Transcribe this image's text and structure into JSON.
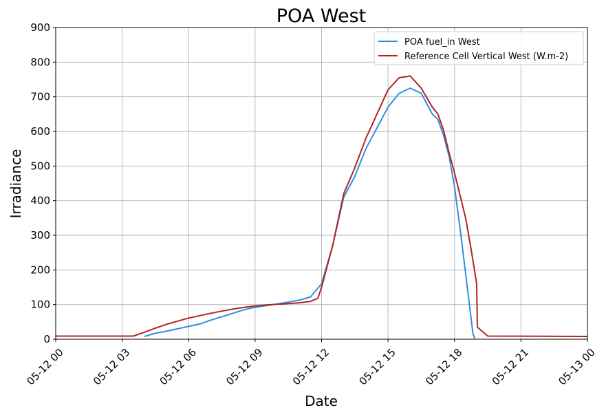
{
  "chart_data": {
    "type": "line",
    "title": "POA West",
    "xlabel": "Date",
    "ylabel": "Irradiance",
    "xlim": [
      "2024-05-12 00:00",
      "2024-05-13 00:00"
    ],
    "ylim": [
      0,
      900
    ],
    "x_ticks": [
      "05-12 00",
      "05-12 03",
      "05-12 06",
      "05-12 09",
      "05-12 12",
      "05-12 15",
      "05-12 18",
      "05-12 21",
      "05-13 00"
    ],
    "y_ticks": [
      0,
      100,
      200,
      300,
      400,
      500,
      600,
      700,
      800,
      900
    ],
    "grid": true,
    "legend_position": "upper right",
    "series": [
      {
        "name": "POA fuel_in West",
        "color": "#2b8fe0",
        "points": [
          [
            "05-12 04:00",
            8
          ],
          [
            "05-12 04:30",
            17
          ],
          [
            "05-12 05:00",
            23
          ],
          [
            "05-12 05:30",
            30
          ],
          [
            "05-12 06:00",
            37
          ],
          [
            "05-12 06:30",
            44
          ],
          [
            "05-12 07:00",
            55
          ],
          [
            "05-12 07:30",
            65
          ],
          [
            "05-12 08:00",
            75
          ],
          [
            "05-12 08:30",
            85
          ],
          [
            "05-12 09:00",
            92
          ],
          [
            "05-12 09:30",
            97
          ],
          [
            "05-12 10:00",
            102
          ],
          [
            "05-12 10:30",
            107
          ],
          [
            "05-12 11:00",
            113
          ],
          [
            "05-12 11:30",
            122
          ],
          [
            "05-12 12:00",
            160
          ],
          [
            "05-12 12:30",
            270
          ],
          [
            "05-12 13:00",
            410
          ],
          [
            "05-12 13:30",
            470
          ],
          [
            "05-12 14:00",
            550
          ],
          [
            "05-12 14:30",
            610
          ],
          [
            "05-12 15:00",
            670
          ],
          [
            "05-12 15:30",
            710
          ],
          [
            "05-12 16:00",
            725
          ],
          [
            "05-12 16:30",
            710
          ],
          [
            "05-12 17:00",
            650
          ],
          [
            "05-12 17:15",
            635
          ],
          [
            "05-12 17:30",
            590
          ],
          [
            "05-12 17:45",
            530
          ],
          [
            "05-12 18:00",
            440
          ],
          [
            "05-12 18:15",
            320
          ],
          [
            "05-12 18:30",
            190
          ],
          [
            "05-12 18:45",
            60
          ],
          [
            "05-12 18:50",
            15
          ],
          [
            "05-12 18:55",
            2
          ]
        ]
      },
      {
        "name": "Reference Cell Vertical West (W.m-2)",
        "color": "#b22222",
        "points": [
          [
            "05-12 00:00",
            9
          ],
          [
            "05-12 03:30",
            9
          ],
          [
            "05-12 04:00",
            20
          ],
          [
            "05-12 04:30",
            32
          ],
          [
            "05-12 05:00",
            43
          ],
          [
            "05-12 05:30",
            52
          ],
          [
            "05-12 06:00",
            61
          ],
          [
            "05-12 06:30",
            68
          ],
          [
            "05-12 07:00",
            75
          ],
          [
            "05-12 07:30",
            81
          ],
          [
            "05-12 08:00",
            87
          ],
          [
            "05-12 08:30",
            92
          ],
          [
            "05-12 09:00",
            96
          ],
          [
            "05-12 09:30",
            99
          ],
          [
            "05-12 10:00",
            101
          ],
          [
            "05-12 10:30",
            103
          ],
          [
            "05-12 11:00",
            105
          ],
          [
            "05-12 11:30",
            109
          ],
          [
            "05-12 11:50",
            118
          ],
          [
            "05-12 12:00",
            150
          ],
          [
            "05-12 12:30",
            270
          ],
          [
            "05-12 13:00",
            420
          ],
          [
            "05-12 13:30",
            495
          ],
          [
            "05-12 14:00",
            580
          ],
          [
            "05-12 14:30",
            650
          ],
          [
            "05-12 15:00",
            720
          ],
          [
            "05-12 15:30",
            755
          ],
          [
            "05-12 16:00",
            760
          ],
          [
            "05-12 16:30",
            725
          ],
          [
            "05-12 17:00",
            670
          ],
          [
            "05-12 17:15",
            650
          ],
          [
            "05-12 17:30",
            605
          ],
          [
            "05-12 17:45",
            540
          ],
          [
            "05-12 18:00",
            480
          ],
          [
            "05-12 18:30",
            350
          ],
          [
            "05-12 18:45",
            260
          ],
          [
            "05-12 19:00",
            160
          ],
          [
            "05-12 19:02",
            35
          ],
          [
            "05-12 19:30",
            9
          ],
          [
            "05-13 00:00",
            8
          ]
        ]
      }
    ]
  }
}
